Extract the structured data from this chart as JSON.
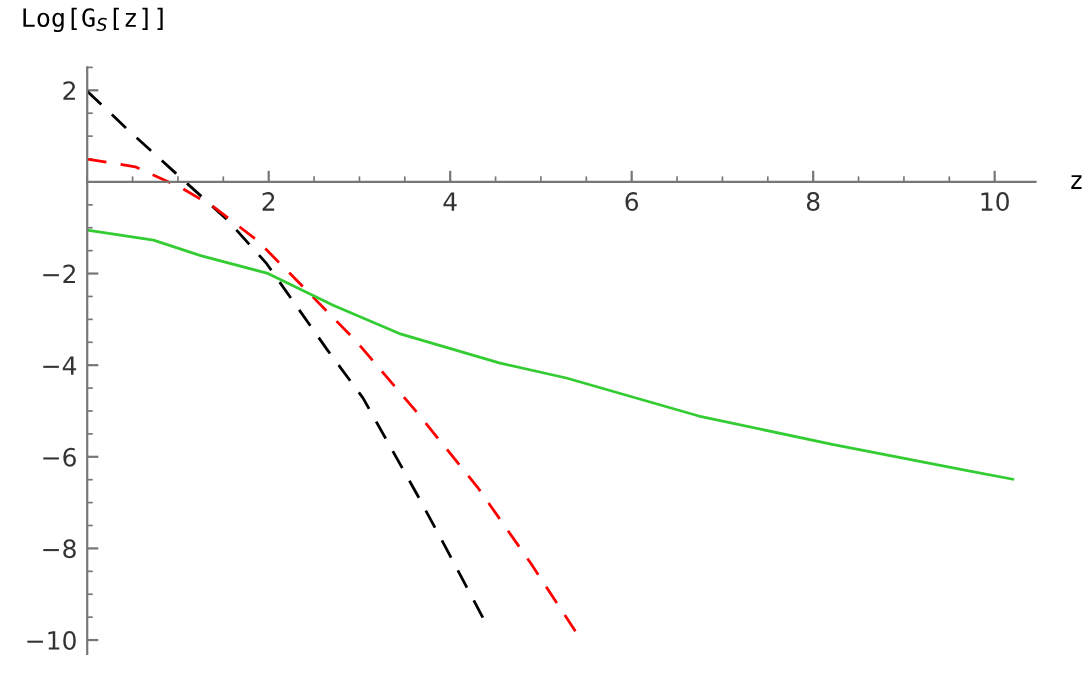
{
  "chart_data": {
    "type": "line",
    "ylabel": "Log[G$_{S}$[z]]",
    "xlabel": "z",
    "xlim": [
      0,
      10.45
    ],
    "ylim": [
      -10.3,
      2.5
    ],
    "xticks": [
      2,
      4,
      6,
      8,
      10
    ],
    "yticks": [
      2,
      -2,
      -4,
      -6,
      -8,
      -10
    ],
    "grid": false,
    "legend": false,
    "series": [
      {
        "color": "#000000",
        "line_style": "dashed",
        "x": [
          0,
          0.48,
          0.92,
          1.54,
          1.98,
          2.64,
          3.04,
          3.64,
          3.94,
          4.36
        ],
        "values": [
          1.98,
          1.08,
          0.29,
          -0.82,
          -1.79,
          -3.65,
          -4.72,
          -6.84,
          -7.94,
          -9.51
        ]
      },
      {
        "color": "#ff0000",
        "line_style": "dashed",
        "x": [
          0,
          0.53,
          1.03,
          1.39,
          1.87,
          2.23,
          2.97,
          3.65,
          4.3,
          4.89,
          5.38
        ],
        "values": [
          0.5,
          0.33,
          -0.12,
          -0.54,
          -1.27,
          -1.99,
          -3.49,
          -5.07,
          -6.66,
          -8.33,
          -9.81
        ]
      },
      {
        "color": "#33cc33",
        "line_style": "solid",
        "x": [
          0,
          0.73,
          1.25,
          1.98,
          2.71,
          3.44,
          4.54,
          5.28,
          6.74,
          8.21,
          9.67,
          10.2
        ],
        "values": [
          -1.05,
          -1.27,
          -1.61,
          -1.99,
          -2.69,
          -3.31,
          -3.95,
          -4.28,
          -5.11,
          -5.73,
          -6.29,
          -6.49
        ]
      }
    ]
  }
}
